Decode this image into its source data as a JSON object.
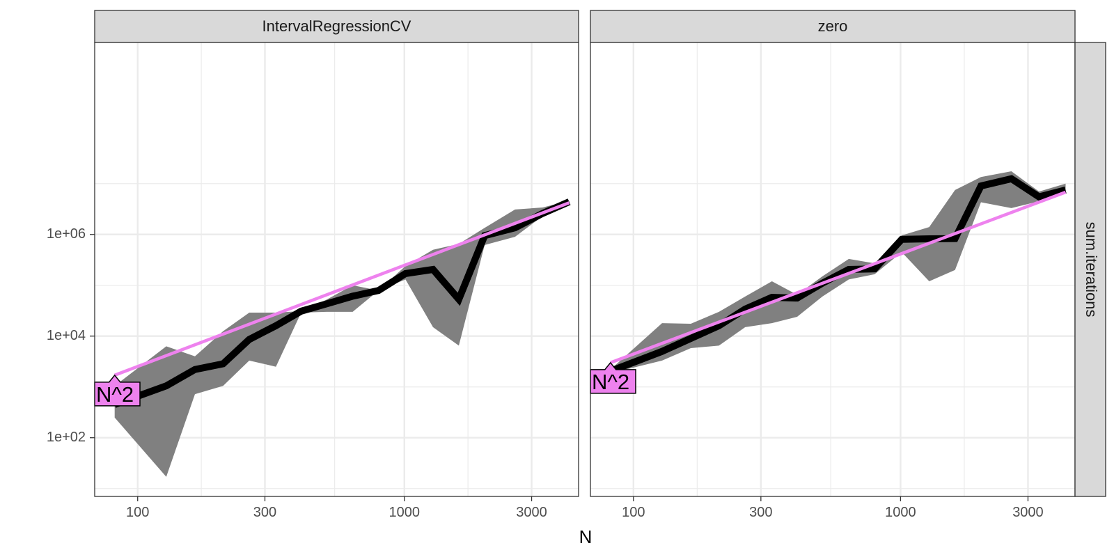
{
  "chart_data": {
    "type": "line",
    "xlabel": "N",
    "row_strip": "sum.iterations",
    "x_scale": "log10",
    "y_scale": "log10",
    "xlim": [
      69,
      4500
    ],
    "ylim": [
      7,
      6000000000
    ],
    "x_ticks": [
      {
        "value": 100,
        "label": "100"
      },
      {
        "value": 300,
        "label": "300"
      },
      {
        "value": 1000,
        "label": "1000"
      },
      {
        "value": 3000,
        "label": "3000"
      }
    ],
    "y_ticks": [
      {
        "value": 100,
        "label": "1e+02"
      },
      {
        "value": 10000,
        "label": "1e+04"
      },
      {
        "value": 1000000,
        "label": "1e+06"
      }
    ],
    "grid": true,
    "colors": {
      "median_line": "#000000",
      "band": "#808080",
      "reference_line": "#ee82ee",
      "label_fill": "#ee82ee",
      "strip_fill": "#d9d9d9",
      "grid": "#ebebeb"
    },
    "panels": [
      {
        "title": "IntervalRegressionCV",
        "median": [
          {
            "x": 82,
            "y": 450
          },
          {
            "x": 128,
            "y": 1050
          },
          {
            "x": 164,
            "y": 2200
          },
          {
            "x": 209,
            "y": 2850
          },
          {
            "x": 262,
            "y": 8600
          },
          {
            "x": 330,
            "y": 16000
          },
          {
            "x": 410,
            "y": 31000
          },
          {
            "x": 510,
            "y": 43000
          },
          {
            "x": 640,
            "y": 61000
          },
          {
            "x": 800,
            "y": 79000
          },
          {
            "x": 1010,
            "y": 170000
          },
          {
            "x": 1280,
            "y": 205000
          },
          {
            "x": 1600,
            "y": 53000
          },
          {
            "x": 2000,
            "y": 950000
          },
          {
            "x": 2600,
            "y": 1350000
          },
          {
            "x": 3300,
            "y": 2600000
          },
          {
            "x": 4150,
            "y": 4400000
          }
        ],
        "band_upper": [
          {
            "x": 82,
            "y": 1050
          },
          {
            "x": 128,
            "y": 6300
          },
          {
            "x": 164,
            "y": 4000
          },
          {
            "x": 209,
            "y": 12500
          },
          {
            "x": 262,
            "y": 29000
          },
          {
            "x": 330,
            "y": 29000
          },
          {
            "x": 410,
            "y": 31000
          },
          {
            "x": 510,
            "y": 52000
          },
          {
            "x": 640,
            "y": 100000
          },
          {
            "x": 800,
            "y": 79000
          },
          {
            "x": 1010,
            "y": 240000
          },
          {
            "x": 1280,
            "y": 500000
          },
          {
            "x": 1600,
            "y": 650000
          },
          {
            "x": 2000,
            "y": 1350000
          },
          {
            "x": 2600,
            "y": 3100000
          },
          {
            "x": 3300,
            "y": 3400000
          },
          {
            "x": 4150,
            "y": 4600000
          }
        ],
        "band_lower": [
          {
            "x": 82,
            "y": 250
          },
          {
            "x": 128,
            "y": 17
          },
          {
            "x": 164,
            "y": 720
          },
          {
            "x": 209,
            "y": 1050
          },
          {
            "x": 262,
            "y": 3300
          },
          {
            "x": 330,
            "y": 2500
          },
          {
            "x": 410,
            "y": 29000
          },
          {
            "x": 510,
            "y": 30000
          },
          {
            "x": 640,
            "y": 30000
          },
          {
            "x": 800,
            "y": 79000
          },
          {
            "x": 1010,
            "y": 130000
          },
          {
            "x": 1280,
            "y": 15000
          },
          {
            "x": 1600,
            "y": 6500
          },
          {
            "x": 2000,
            "y": 620000
          },
          {
            "x": 2600,
            "y": 900000
          },
          {
            "x": 3300,
            "y": 2300000
          },
          {
            "x": 4150,
            "y": 4200000
          }
        ],
        "reference_line": {
          "label": "N^2",
          "from": {
            "x": 82,
            "y": 1700
          },
          "to": {
            "x": 4150,
            "y": 4200000
          }
        }
      },
      {
        "title": "zero",
        "median": [
          {
            "x": 82,
            "y": 2050
          },
          {
            "x": 128,
            "y": 5000
          },
          {
            "x": 164,
            "y": 9000
          },
          {
            "x": 209,
            "y": 16000
          },
          {
            "x": 262,
            "y": 34000
          },
          {
            "x": 330,
            "y": 58000
          },
          {
            "x": 410,
            "y": 56000
          },
          {
            "x": 510,
            "y": 110000
          },
          {
            "x": 640,
            "y": 205000
          },
          {
            "x": 800,
            "y": 210000
          },
          {
            "x": 1010,
            "y": 800000
          },
          {
            "x": 1280,
            "y": 820000
          },
          {
            "x": 1600,
            "y": 830000
          },
          {
            "x": 2000,
            "y": 9000000
          },
          {
            "x": 2600,
            "y": 12500000
          },
          {
            "x": 3300,
            "y": 5500000
          },
          {
            "x": 4150,
            "y": 7500000
          }
        ],
        "band_upper": [
          {
            "x": 82,
            "y": 2200
          },
          {
            "x": 128,
            "y": 18000
          },
          {
            "x": 164,
            "y": 17500
          },
          {
            "x": 209,
            "y": 30000
          },
          {
            "x": 262,
            "y": 60000
          },
          {
            "x": 330,
            "y": 120000
          },
          {
            "x": 410,
            "y": 65000
          },
          {
            "x": 510,
            "y": 150000
          },
          {
            "x": 640,
            "y": 330000
          },
          {
            "x": 800,
            "y": 270000
          },
          {
            "x": 1010,
            "y": 960000
          },
          {
            "x": 1280,
            "y": 1400000
          },
          {
            "x": 1600,
            "y": 7500000
          },
          {
            "x": 2000,
            "y": 13500000
          },
          {
            "x": 2600,
            "y": 17500000
          },
          {
            "x": 3300,
            "y": 7000000
          },
          {
            "x": 4150,
            "y": 10000000
          }
        ],
        "band_lower": [
          {
            "x": 82,
            "y": 1850
          },
          {
            "x": 128,
            "y": 3300
          },
          {
            "x": 164,
            "y": 5800
          },
          {
            "x": 209,
            "y": 6500
          },
          {
            "x": 262,
            "y": 15000
          },
          {
            "x": 330,
            "y": 18000
          },
          {
            "x": 410,
            "y": 24000
          },
          {
            "x": 510,
            "y": 60000
          },
          {
            "x": 640,
            "y": 130000
          },
          {
            "x": 800,
            "y": 165000
          },
          {
            "x": 1010,
            "y": 450000
          },
          {
            "x": 1280,
            "y": 120000
          },
          {
            "x": 1600,
            "y": 200000
          },
          {
            "x": 2000,
            "y": 4300000
          },
          {
            "x": 2600,
            "y": 3300000
          },
          {
            "x": 3300,
            "y": 4500000
          },
          {
            "x": 4150,
            "y": 6500000
          }
        ],
        "reference_line": {
          "label": "N^2",
          "from": {
            "x": 82,
            "y": 3000
          },
          "to": {
            "x": 4150,
            "y": 6800000
          }
        }
      }
    ]
  }
}
